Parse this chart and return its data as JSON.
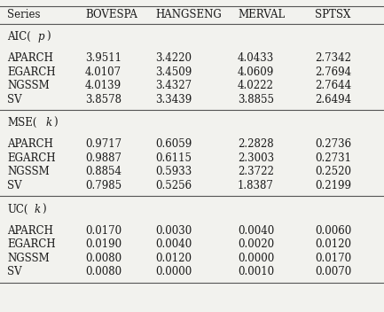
{
  "columns": [
    "Series",
    "BOVESPA",
    "HANGSENG",
    "MERVAL",
    "SPTSX"
  ],
  "sections": [
    {
      "header_prefix": "AIC(",
      "header_italic": "p",
      "header_suffix": ")",
      "rows": [
        [
          "APARCH",
          "3.9511",
          "3.4220",
          "4.0433",
          "2.7342"
        ],
        [
          "EGARCH",
          "4.0107",
          "3.4509",
          "4.0609",
          "2.7694"
        ],
        [
          "NGSSM",
          "4.0139",
          "3.4327",
          "4.0222",
          "2.7644"
        ],
        [
          "SV",
          "3.8578",
          "3.3439",
          "3.8855",
          "2.6494"
        ]
      ]
    },
    {
      "header_prefix": "MSE(",
      "header_italic": "k",
      "header_suffix": ")",
      "rows": [
        [
          "APARCH",
          "0.9717",
          "0.6059",
          "2.2828",
          "0.2736"
        ],
        [
          "EGARCH",
          "0.9887",
          "0.6115",
          "2.3003",
          "0.2731"
        ],
        [
          "NGSSM",
          "0.8854",
          "0.5933",
          "2.3722",
          "0.2520"
        ],
        [
          "SV",
          "0.7985",
          "0.5256",
          "1.8387",
          "0.2199"
        ]
      ]
    },
    {
      "header_prefix": "UC(",
      "header_italic": "k",
      "header_suffix": ")",
      "rows": [
        [
          "APARCH",
          "0.0170",
          "0.0030",
          "0.0040",
          "0.0060"
        ],
        [
          "EGARCH",
          "0.0190",
          "0.0040",
          "0.0020",
          "0.0120"
        ],
        [
          "NGSSM",
          "0.0080",
          "0.0120",
          "0.0000",
          "0.0170"
        ],
        [
          "SV",
          "0.0080",
          "0.0000",
          "0.0010",
          "0.0070"
        ]
      ]
    }
  ],
  "col_x_points": [
    8,
    96,
    175,
    268,
    355
  ],
  "bg_color": "#f2f2ee",
  "text_color": "#1a1a1a",
  "line_color": "#555555",
  "font_size": 8.5,
  "figwidth": 4.33,
  "figheight": 3.52,
  "dpi": 100
}
